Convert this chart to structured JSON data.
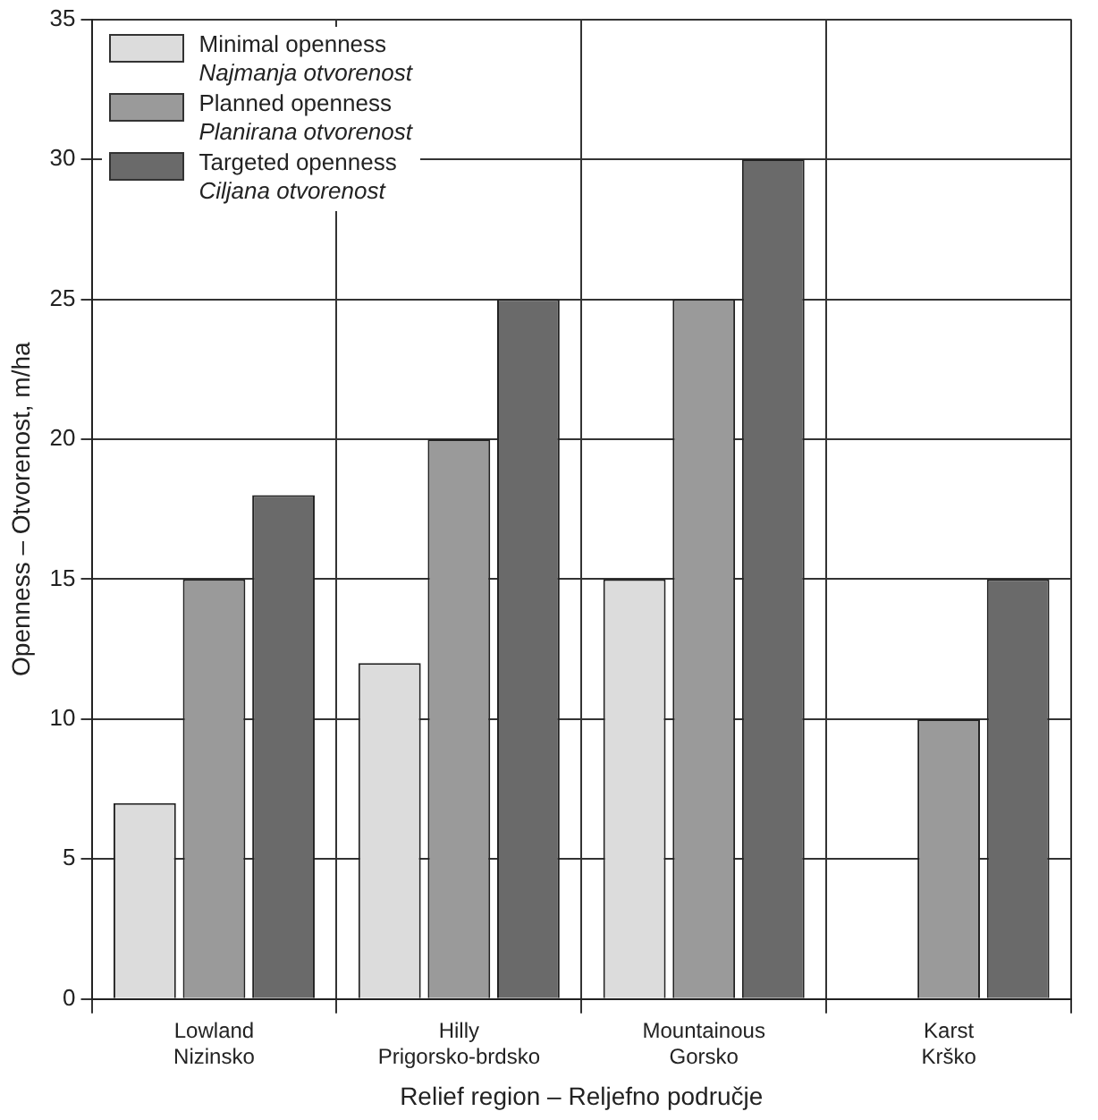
{
  "chart_data": {
    "type": "bar",
    "xlabel": "Relief region – Reljefno područje",
    "ylabel": "Openness – Otvorenost, m/ha",
    "categories": [
      "Lowland\nNizinsko",
      "Hilly\nPrigorsko-brdsko",
      "Mountainous\nGorsko",
      "Karst\nKrško"
    ],
    "series": [
      {
        "name": "Minimal openness\nNajmanja otvorenost",
        "color": "#dcdcdc",
        "values": [
          7,
          12,
          15,
          null
        ]
      },
      {
        "name": "Planned openness\nPlanirana otvorenost",
        "color": "#9a9a9a",
        "values": [
          15,
          20,
          25,
          10
        ]
      },
      {
        "name": "Targeted openness\nCiljana otvorenost",
        "color": "#6a6a6a",
        "values": [
          18,
          25,
          30,
          15
        ]
      }
    ],
    "ylim": [
      0,
      35
    ],
    "yticks": [
      0,
      5,
      10,
      15,
      20,
      25,
      30,
      35
    ],
    "grid": true,
    "legend": "top left"
  }
}
